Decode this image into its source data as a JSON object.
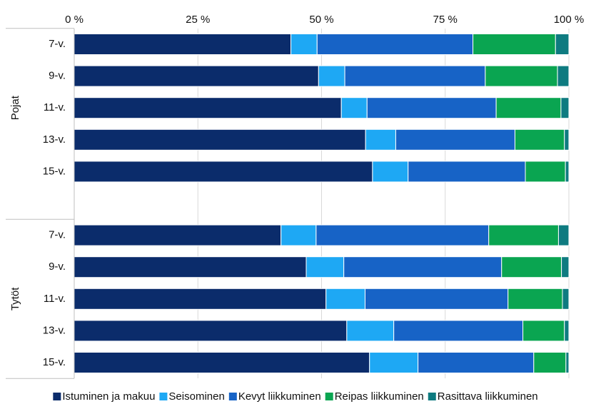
{
  "chart_data": {
    "type": "stacked-bar-horizontal",
    "groups": [
      {
        "name": "Pojat",
        "categories": [
          "7-v.",
          "9-v.",
          "11-v.",
          "13-v.",
          "15-v."
        ]
      },
      {
        "name": "Tytöt",
        "categories": [
          "7-v.",
          "9-v.",
          "11-v.",
          "13-v.",
          "15-v."
        ]
      }
    ],
    "series": [
      {
        "name": "Istuminen ja makuu",
        "color": "#0b2c6b",
        "values": [
          43.8,
          49.4,
          54.0,
          58.9,
          60.3,
          41.8,
          46.9,
          50.9,
          55.1,
          59.7
        ]
      },
      {
        "name": "Seisominen",
        "color": "#1ea8f4",
        "values": [
          5.3,
          5.3,
          5.2,
          6.1,
          7.2,
          7.1,
          7.6,
          7.9,
          9.5,
          9.8
        ]
      },
      {
        "name": "Kevyt liikkuminen",
        "color": "#1763c6",
        "values": [
          31.5,
          28.4,
          26.1,
          24.1,
          23.7,
          34.9,
          31.9,
          28.9,
          26.1,
          23.4
        ]
      },
      {
        "name": "Reipas liikkuminen",
        "color": "#0aa551",
        "values": [
          16.7,
          14.6,
          13.1,
          10.0,
          8.1,
          14.1,
          12.1,
          11.0,
          8.4,
          6.5
        ]
      },
      {
        "name": "Rasittava liikkuminen",
        "color": "#0e7b80",
        "values": [
          2.7,
          2.3,
          1.6,
          0.9,
          0.7,
          2.1,
          1.5,
          1.3,
          0.9,
          0.6
        ]
      }
    ],
    "xlim": [
      0,
      100
    ],
    "xticks": [
      {
        "value": 0,
        "label": "0 %"
      },
      {
        "value": 25,
        "label": "25 %"
      },
      {
        "value": 50,
        "label": "50 %"
      },
      {
        "value": 75,
        "label": "75 %"
      },
      {
        "value": 100,
        "label": "100 %"
      }
    ],
    "grid": true,
    "legend": "bottom"
  }
}
